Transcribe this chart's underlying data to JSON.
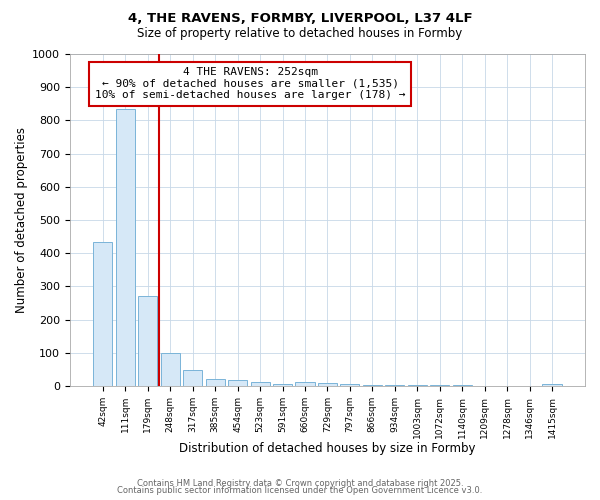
{
  "title1": "4, THE RAVENS, FORMBY, LIVERPOOL, L37 4LF",
  "title2": "Size of property relative to detached houses in Formby",
  "xlabel": "Distribution of detached houses by size in Formby",
  "ylabel": "Number of detached properties",
  "categories": [
    "42sqm",
    "111sqm",
    "179sqm",
    "248sqm",
    "317sqm",
    "385sqm",
    "454sqm",
    "523sqm",
    "591sqm",
    "660sqm",
    "729sqm",
    "797sqm",
    "866sqm",
    "934sqm",
    "1003sqm",
    "1072sqm",
    "1140sqm",
    "1209sqm",
    "1278sqm",
    "1346sqm",
    "1415sqm"
  ],
  "values": [
    435,
    835,
    270,
    100,
    47,
    22,
    17,
    12,
    5,
    11,
    8,
    6,
    4,
    3,
    2,
    2,
    2,
    1,
    1,
    1,
    7
  ],
  "bar_color": "#d6e8f7",
  "bar_edge_color": "#7ab4d8",
  "vline_x": 2.5,
  "vline_color": "#cc0000",
  "annotation_text": "4 THE RAVENS: 252sqm\n← 90% of detached houses are smaller (1,535)\n10% of semi-detached houses are larger (178) →",
  "annotation_box_color": "#cc0000",
  "ylim": [
    0,
    1000
  ],
  "yticks": [
    0,
    100,
    200,
    300,
    400,
    500,
    600,
    700,
    800,
    900,
    1000
  ],
  "footer1": "Contains HM Land Registry data © Crown copyright and database right 2025.",
  "footer2": "Contains public sector information licensed under the Open Government Licence v3.0.",
  "bg_color": "#ffffff",
  "plot_bg_color": "#ffffff",
  "grid_color": "#c8d8e8"
}
